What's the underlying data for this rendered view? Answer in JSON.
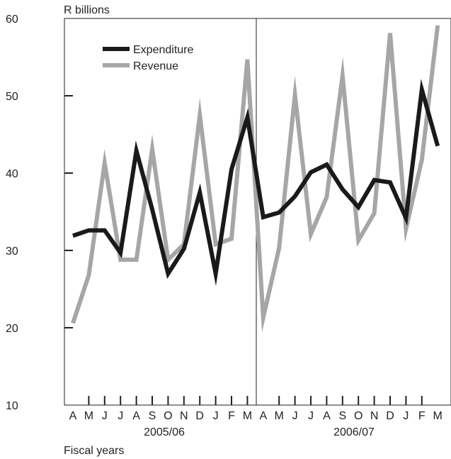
{
  "chart_data": {
    "type": "line",
    "ylabel": "R billions",
    "xlabel": "Fiscal years",
    "ylim": [
      10,
      60
    ],
    "yticks": [
      10,
      20,
      30,
      40,
      50,
      60
    ],
    "grid": false,
    "legend_position": "top-left",
    "categories": [
      "A",
      "M",
      "J",
      "J",
      "A",
      "S",
      "O",
      "N",
      "D",
      "J",
      "F",
      "M",
      "A",
      "M",
      "J",
      "J",
      "A",
      "S",
      "O",
      "N",
      "D",
      "J",
      "F",
      "M"
    ],
    "periods": [
      {
        "label": "2005/06",
        "start": 0,
        "end": 11
      },
      {
        "label": "2006/07",
        "start": 12,
        "end": 23
      }
    ],
    "series": [
      {
        "name": "Expenditure",
        "color": "#1a1a1a",
        "values": [
          31.9,
          32.6,
          32.6,
          29.7,
          42.9,
          35.3,
          27.0,
          30.2,
          37.5,
          27.0,
          40.5,
          47.2,
          34.3,
          34.9,
          37.0,
          40.1,
          41.1,
          37.9,
          35.6,
          39.1,
          38.8,
          34.2,
          50.8,
          43.5
        ]
      },
      {
        "name": "Revenue",
        "color": "#a6a6a6",
        "values": [
          20.6,
          26.8,
          41.3,
          28.8,
          28.8,
          43.1,
          28.8,
          30.8,
          47.5,
          30.8,
          31.5,
          54.7,
          21.3,
          30.3,
          50.1,
          32.1,
          36.9,
          52.6,
          31.3,
          34.8,
          58.1,
          32.8,
          41.7,
          59.1
        ]
      }
    ]
  }
}
